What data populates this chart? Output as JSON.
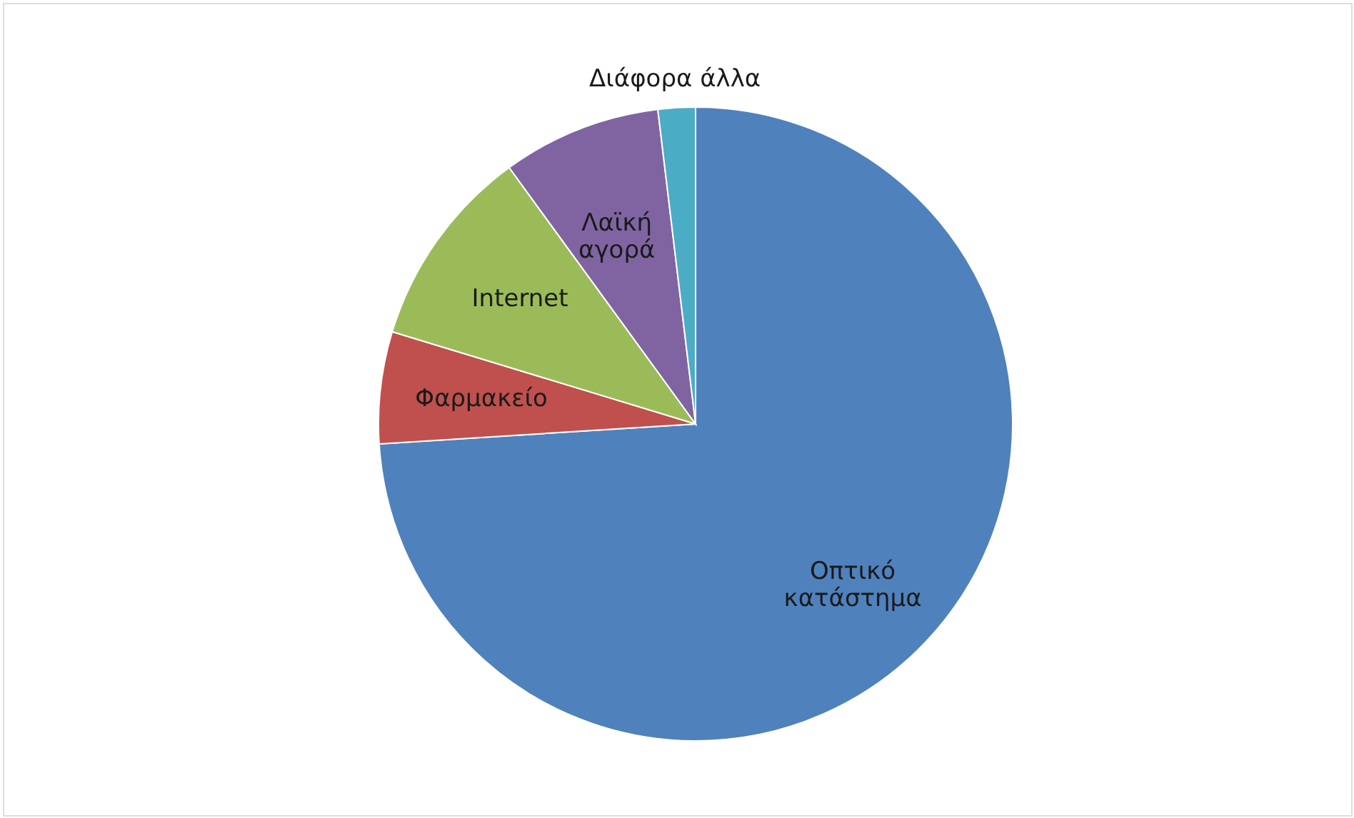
{
  "chart_data": {
    "type": "pie",
    "categories": [
      "Οπτικό κατάστημα",
      "Φαρμακείο",
      "Internet",
      "Λαϊκή αγορά",
      "Διάφορα άλλα"
    ],
    "values": [
      74.0,
      5.7,
      10.3,
      8.1,
      1.9
    ],
    "colors": [
      "#4f81bd",
      "#c0504d",
      "#9bbb59",
      "#8064a2",
      "#4bacc6"
    ]
  }
}
